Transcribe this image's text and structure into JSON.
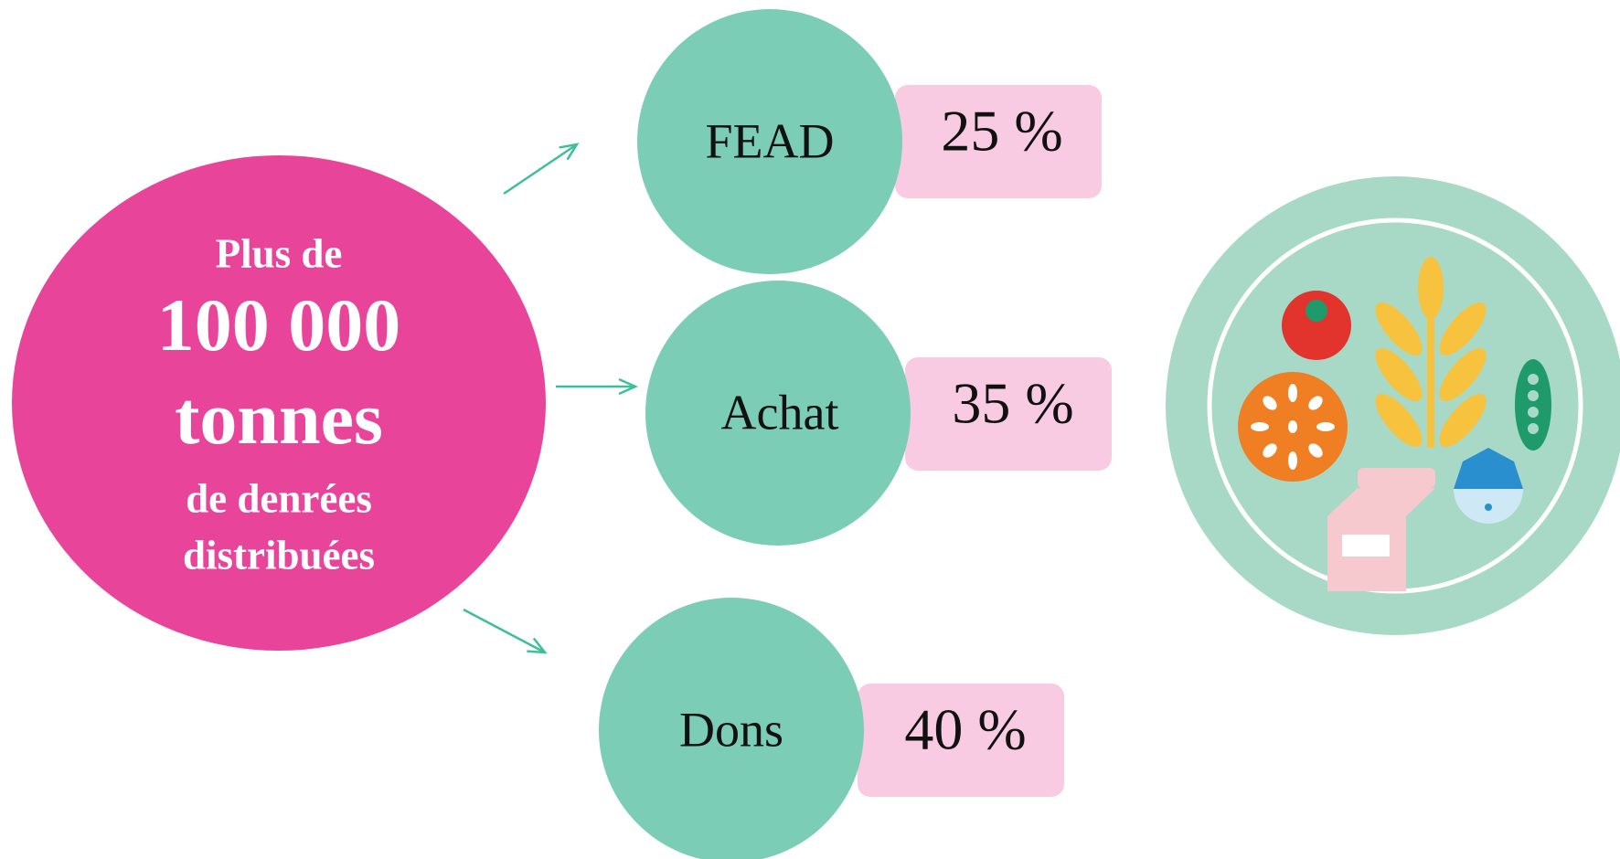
{
  "source": {
    "lines": [
      "Plus de",
      "100 000",
      "tonnes",
      "de denrées",
      "distribuées"
    ]
  },
  "nodes": [
    {
      "label": "FEAD",
      "share": "25 %"
    },
    {
      "label": "Achat",
      "share": "35 %"
    },
    {
      "label": "Dons",
      "share": "40 %"
    }
  ]
}
